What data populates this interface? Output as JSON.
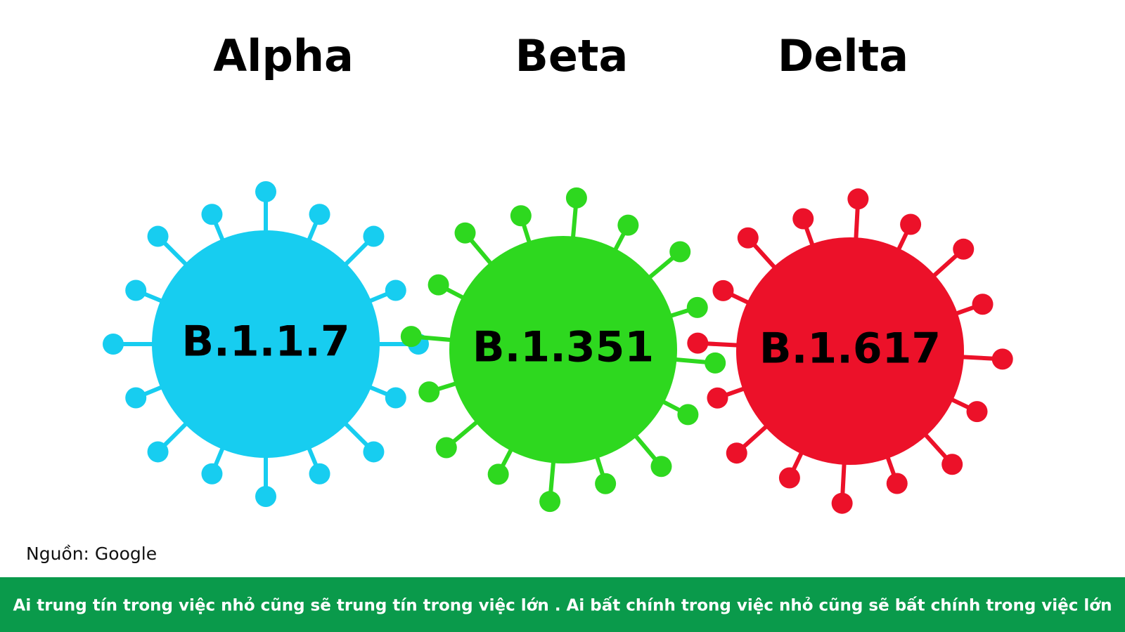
{
  "variants": [
    {
      "name": "Alpha",
      "lineage": "B.1.1.7",
      "color": "#17cdf0"
    },
    {
      "name": "Beta",
      "lineage": "B.1.351",
      "color": "#2ed81f"
    },
    {
      "name": "Delta",
      "lineage": "B.1.617",
      "color": "#ec1129"
    }
  ],
  "source": "Nguồn: Google",
  "footer": "Ai trung tín trong việc nhỏ cũng sẽ trung tín trong việc lớn . Ai bất chính trong việc nhỏ cũng sẽ bất chính trong việc lớn"
}
